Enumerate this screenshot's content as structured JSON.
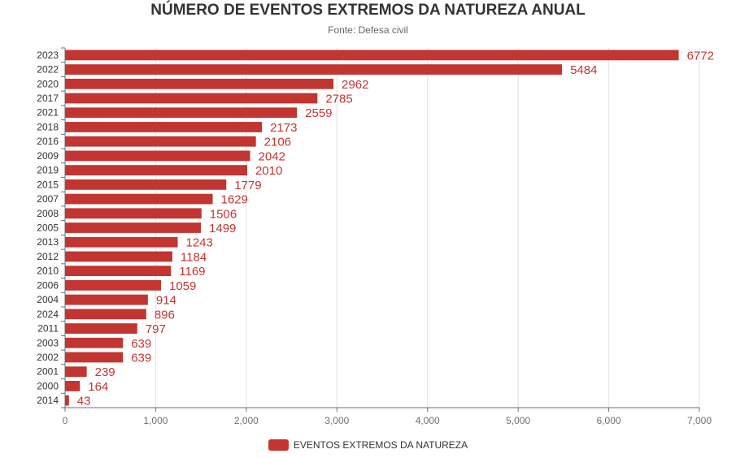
{
  "chart_data": {
    "type": "bar",
    "orientation": "horizontal",
    "title": "NÚMERO DE EVENTOS EXTREMOS DA NATUREZA ANUAL",
    "subtitle": "Fonte: Defesa civil",
    "categories": [
      "2023",
      "2022",
      "2020",
      "2017",
      "2021",
      "2018",
      "2016",
      "2009",
      "2019",
      "2015",
      "2007",
      "2008",
      "2005",
      "2013",
      "2012",
      "2010",
      "2006",
      "2004",
      "2024",
      "2011",
      "2003",
      "2002",
      "2001",
      "2000",
      "2014"
    ],
    "series": [
      {
        "name": "EVENTOS EXTREMOS DA NATUREZA",
        "values": [
          6772,
          5484,
          2962,
          2785,
          2559,
          2173,
          2106,
          2042,
          2010,
          1779,
          1629,
          1506,
          1499,
          1243,
          1184,
          1169,
          1059,
          914,
          896,
          797,
          639,
          639,
          239,
          164,
          43
        ]
      }
    ],
    "xlim": [
      0,
      7000
    ],
    "xticks": [
      0,
      1000,
      2000,
      3000,
      4000,
      5000,
      6000,
      7000
    ],
    "xtick_labels": [
      "0",
      "1,000",
      "2,000",
      "3,000",
      "4,000",
      "5,000",
      "6,000",
      "7,000"
    ],
    "grid": "vertical",
    "legend_position": "bottom-center",
    "colors": {
      "bar": "#c23531",
      "label": "#c23531",
      "grid": "#e0e0e6",
      "axis": "#6e7079",
      "tick_text": "#6e7079"
    }
  }
}
